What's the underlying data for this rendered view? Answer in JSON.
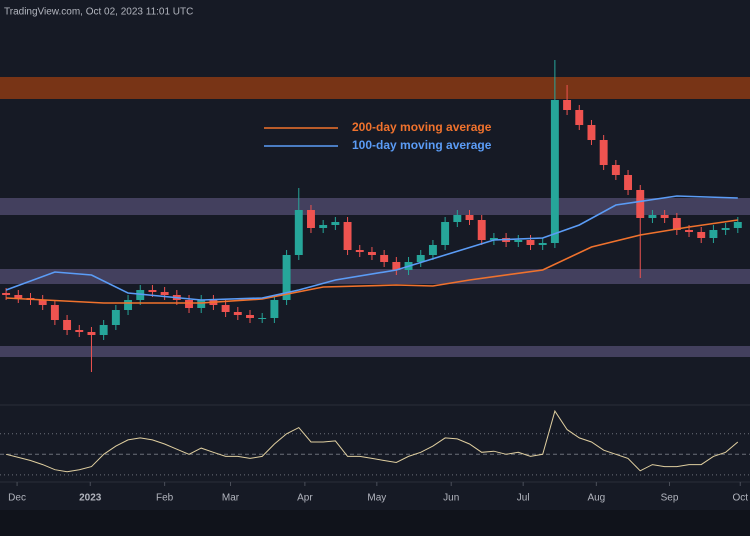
{
  "header": "TradingView.com, Oct 02, 2023 11:01 UTC",
  "chart_data": [
    {
      "type": "candlestick",
      "up_color": "#26a69a",
      "down_color": "#ef5350",
      "xlim": [
        -0.5,
        61
      ],
      "ylim": [
        0,
        385
      ],
      "legend": "upper-center",
      "x": [
        0,
        1,
        2,
        3,
        4,
        5,
        6,
        7,
        8,
        9,
        10,
        11,
        12,
        13,
        14,
        15,
        16,
        17,
        18,
        19,
        20,
        21,
        22,
        23,
        24,
        25,
        26,
        27,
        28,
        29,
        30,
        31,
        32,
        33,
        34,
        35,
        36,
        37,
        38,
        39,
        40,
        41,
        42,
        43,
        44,
        45,
        46,
        47,
        48,
        49,
        50,
        51,
        52,
        53,
        54,
        55,
        56,
        57,
        58,
        59,
        60
      ],
      "open": [
        112,
        110,
        107,
        105,
        100,
        85,
        75,
        73,
        70,
        80,
        95,
        105,
        115,
        113,
        110,
        105,
        97,
        105,
        100,
        93,
        90,
        87,
        87,
        105,
        150,
        195,
        177,
        180,
        183,
        155,
        153,
        150,
        143,
        135,
        143,
        150,
        160,
        183,
        190,
        185,
        165,
        167,
        163,
        165,
        160,
        162,
        305,
        295,
        280,
        265,
        240,
        230,
        215,
        187,
        190,
        187,
        175,
        173,
        167,
        175,
        177
      ],
      "high": [
        117,
        115,
        112,
        110,
        105,
        90,
        80,
        78,
        85,
        100,
        110,
        120,
        120,
        118,
        115,
        110,
        110,
        110,
        105,
        98,
        95,
        92,
        110,
        155,
        217,
        200,
        185,
        188,
        188,
        160,
        158,
        155,
        148,
        148,
        155,
        165,
        188,
        195,
        195,
        190,
        172,
        172,
        170,
        170,
        167,
        345,
        320,
        300,
        285,
        270,
        245,
        235,
        220,
        195,
        195,
        192,
        180,
        178,
        180,
        182,
        188
      ],
      "low": [
        105,
        102,
        100,
        95,
        80,
        70,
        68,
        33,
        65,
        75,
        90,
        100,
        108,
        105,
        100,
        92,
        92,
        95,
        88,
        85,
        82,
        82,
        82,
        100,
        145,
        172,
        172,
        175,
        150,
        148,
        145,
        138,
        130,
        130,
        138,
        145,
        155,
        178,
        180,
        160,
        160,
        158,
        158,
        155,
        155,
        157,
        290,
        275,
        260,
        235,
        225,
        210,
        127,
        182,
        182,
        170,
        168,
        162,
        162,
        170,
        172
      ],
      "close": [
        110,
        107,
        105,
        100,
        85,
        75,
        73,
        70,
        80,
        95,
        105,
        115,
        113,
        110,
        105,
        97,
        105,
        100,
        93,
        90,
        87,
        87,
        105,
        150,
        195,
        177,
        180,
        183,
        155,
        153,
        150,
        143,
        135,
        143,
        150,
        160,
        183,
        190,
        185,
        165,
        167,
        163,
        165,
        160,
        162,
        305,
        295,
        280,
        265,
        240,
        230,
        215,
        187,
        190,
        187,
        175,
        173,
        167,
        175,
        177,
        183
      ],
      "zones": [
        {
          "from": 306,
          "to": 328,
          "color": "#8a3a14"
        },
        {
          "from": 190,
          "to": 207,
          "color": "#4b4868"
        },
        {
          "from": 121,
          "to": 136,
          "color": "#4b4868"
        },
        {
          "from": 48,
          "to": 59,
          "color": "#4b4868"
        }
      ],
      "series": [
        {
          "name": "200-day moving average",
          "color": "#f0722d",
          "x": [
            0,
            8,
            16,
            21,
            26,
            32,
            35,
            38,
            44,
            48,
            52,
            56,
            60
          ],
          "values": [
            107,
            102,
            102,
            106,
            118,
            120,
            119,
            125,
            135,
            158,
            170,
            178,
            185
          ]
        },
        {
          "name": "100-day moving average",
          "color": "#5b9cf6",
          "x": [
            0,
            4,
            7,
            10,
            16,
            21,
            24,
            27,
            32,
            36,
            40,
            44,
            47,
            50,
            55,
            60
          ],
          "values": [
            115,
            133,
            130,
            112,
            105,
            107,
            115,
            125,
            135,
            150,
            165,
            167,
            180,
            200,
            209,
            207
          ]
        }
      ]
    },
    {
      "type": "line",
      "color": "#e0cfa0",
      "xlim": [
        -0.5,
        61
      ],
      "ylim": [
        25,
        97
      ],
      "yticks": [
        30,
        50,
        70
      ],
      "xticks": [
        {
          "value": 0.9,
          "label": "Dec"
        },
        {
          "value": 6.9,
          "label": "2023"
        },
        {
          "value": 13.0,
          "label": "Feb"
        },
        {
          "value": 18.4,
          "label": "Mar"
        },
        {
          "value": 24.5,
          "label": "Apr"
        },
        {
          "value": 30.4,
          "label": "May"
        },
        {
          "value": 36.5,
          "label": "Jun"
        },
        {
          "value": 42.4,
          "label": "Jul"
        },
        {
          "value": 48.4,
          "label": "Aug"
        },
        {
          "value": 54.4,
          "label": "Sep"
        },
        {
          "value": 60.2,
          "label": "Oct"
        }
      ],
      "values": [
        50,
        47,
        44,
        40,
        35,
        33,
        35,
        38,
        50,
        58,
        64,
        66,
        64,
        60,
        55,
        50,
        56,
        52,
        48,
        48,
        46,
        48,
        60,
        70,
        76,
        62,
        62,
        63,
        48,
        48,
        46,
        44,
        42,
        48,
        52,
        58,
        66,
        65,
        60,
        52,
        53,
        50,
        52,
        48,
        50,
        92,
        74,
        66,
        62,
        54,
        50,
        46,
        34,
        40,
        38,
        38,
        40,
        40,
        48,
        52,
        62
      ]
    }
  ]
}
